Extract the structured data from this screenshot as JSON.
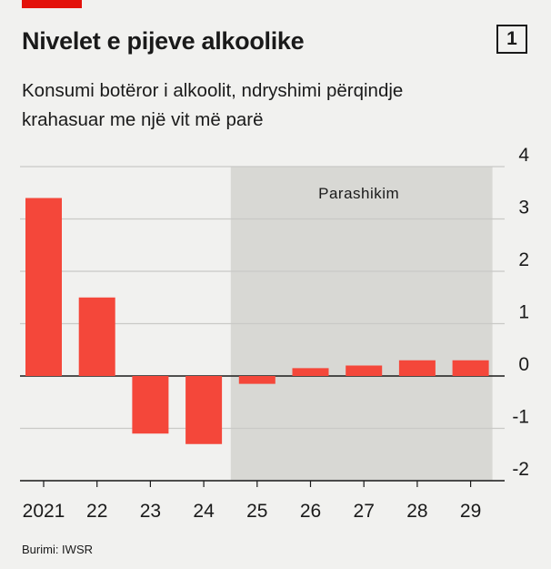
{
  "header": {
    "title": "Nivelet e pijeve alkoolike",
    "badge": "1",
    "subtitle_line1": "Konsumi botëror i alkoolit, ndryshimi përqindje",
    "subtitle_line2": "krahasuar me një vit më parë"
  },
  "footer": {
    "source": "Burimi: IWSR"
  },
  "colors": {
    "bar": "#f4473a",
    "forecast_band": "#d8d8d4",
    "accent": "#e3120b",
    "background": "#f1f1ef"
  },
  "chart_data": {
    "type": "bar",
    "title": "Nivelet e pijeve alkoolike",
    "subtitle": "Konsumi botëror i alkoolit, ndryshimi përqindje krahasuar me një vit më parë",
    "categories": [
      "2021",
      "22",
      "23",
      "24",
      "25",
      "26",
      "27",
      "28",
      "29"
    ],
    "values": [
      3.4,
      1.5,
      -1.1,
      -1.3,
      -0.15,
      0.15,
      0.2,
      0.3,
      0.3
    ],
    "ylim": [
      -2,
      4
    ],
    "yticks": [
      "4",
      "3",
      "2",
      "1",
      "0",
      "-1",
      "-2"
    ],
    "ytick_values": [
      4,
      3,
      2,
      1,
      0,
      -1,
      -2
    ],
    "forecast": {
      "label": "Parashikim",
      "from_category": "25",
      "to_category": "29"
    },
    "grid": true,
    "y_axis_side": "right"
  }
}
